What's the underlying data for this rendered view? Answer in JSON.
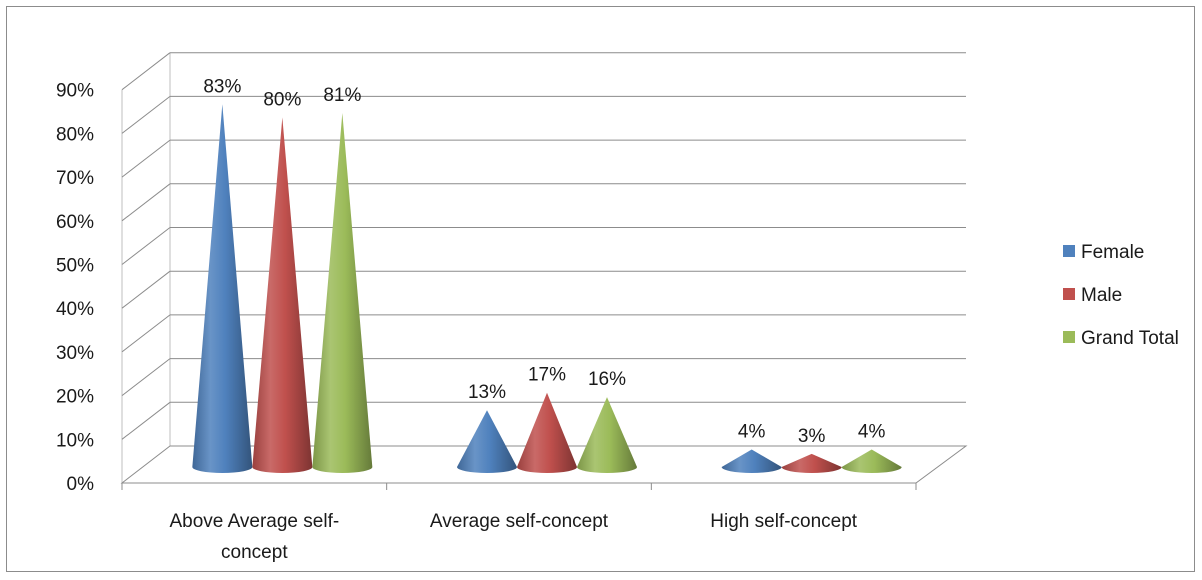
{
  "chart_data": {
    "type": "bar",
    "bar_shape": "cone-3d",
    "categories": [
      "Above Average self-concept",
      "Average self-concept",
      "High self-concept"
    ],
    "category_label_lines": [
      [
        "Above Average self-",
        "concept"
      ],
      [
        "Average self-concept"
      ],
      [
        "High self-concept"
      ]
    ],
    "series": [
      {
        "name": "Female",
        "values": [
          83,
          13,
          4
        ],
        "labels": [
          "83%",
          "13%",
          "4%"
        ],
        "color": "#4f81bd"
      },
      {
        "name": "Male",
        "values": [
          80,
          17,
          3
        ],
        "labels": [
          "80%",
          "17%",
          "3%"
        ],
        "color": "#c0504d"
      },
      {
        "name": "Grand Total",
        "values": [
          81,
          16,
          4
        ],
        "labels": [
          "81%",
          "16%",
          "4%"
        ],
        "color": "#9bbb59"
      }
    ],
    "y_ticks": [
      "0%",
      "10%",
      "20%",
      "30%",
      "40%",
      "50%",
      "60%",
      "70%",
      "80%",
      "90%"
    ],
    "ylim": [
      0,
      90
    ],
    "title": "",
    "xlabel": "",
    "ylabel": "",
    "grid": true,
    "legend_position": "right"
  }
}
